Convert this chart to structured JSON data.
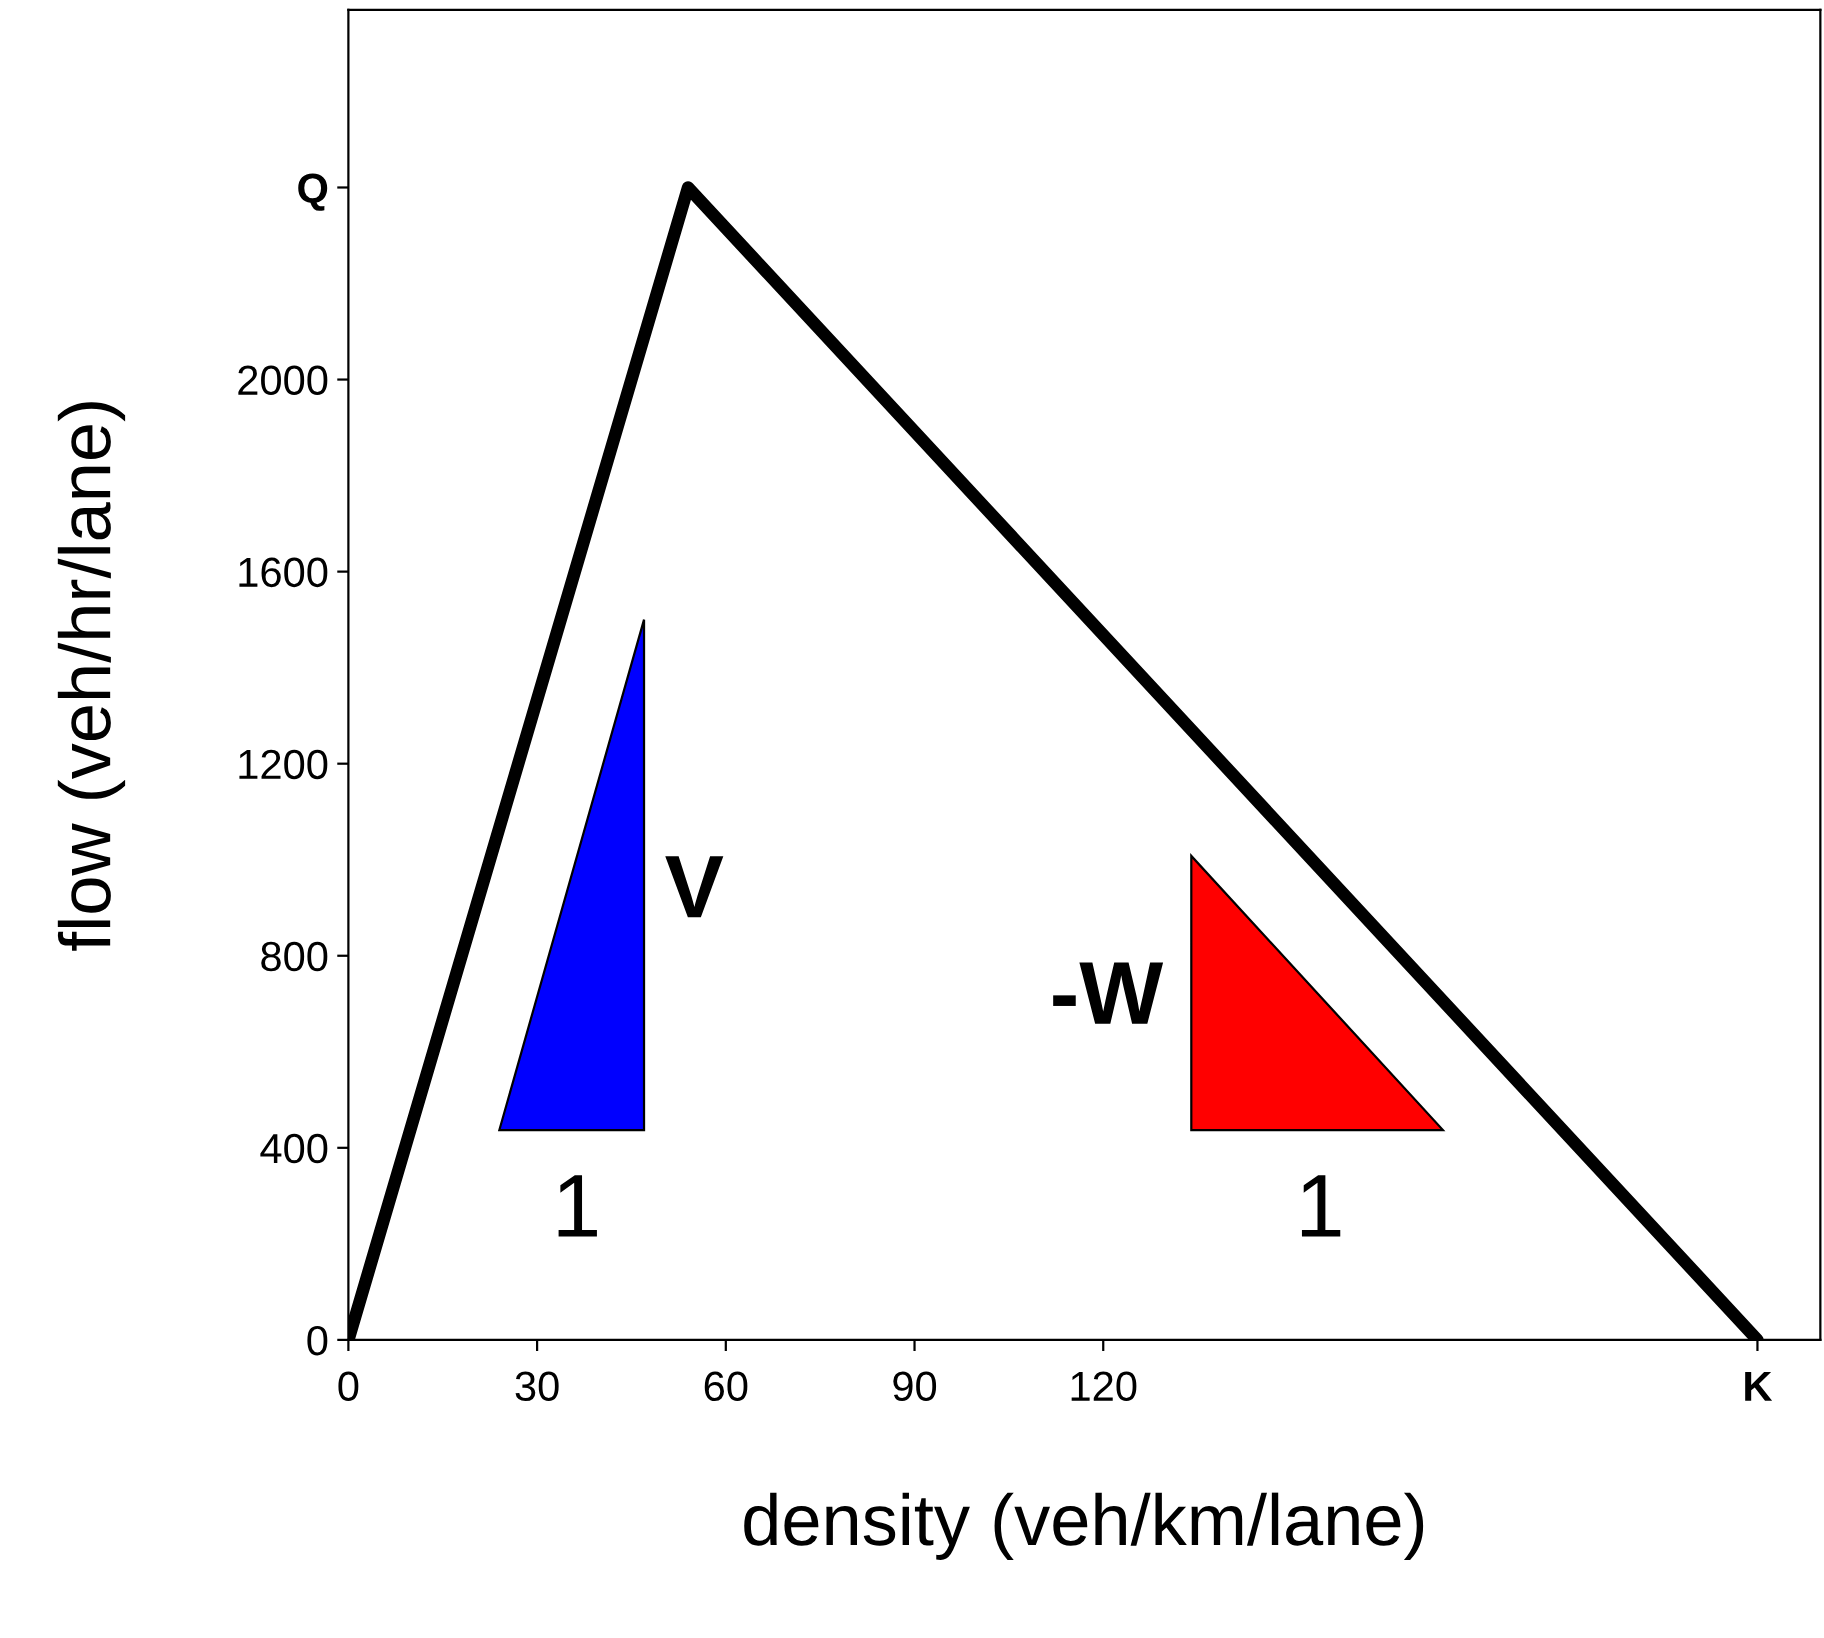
{
  "chart_data": {
    "type": "line",
    "xlabel": "density (veh/km/lane)",
    "ylabel": "flow (veh/hr/lane)",
    "xlim": [
      0,
      234
    ],
    "ylim": [
      0,
      2770
    ],
    "xticks": [
      0,
      30,
      60,
      90,
      120,
      {
        "value": 224,
        "label": "K"
      }
    ],
    "yticks": [
      0,
      400,
      800,
      1200,
      1600,
      2000,
      {
        "value": 2400,
        "label": "Q"
      }
    ],
    "grid": false,
    "marker": "none",
    "line_style": "solid",
    "series": [
      {
        "color": "#000000",
        "x": [
          0,
          54,
          224
        ],
        "values": [
          0,
          2400,
          0
        ]
      },
      {
        "type": "area",
        "color": "#0000ff",
        "x": [
          24,
          47,
          47
        ],
        "values": [
          437,
          437,
          1500
        ]
      },
      {
        "type": "area",
        "color": "#ff0000",
        "x": [
          134,
          174,
          134
        ],
        "values": [
          437,
          437,
          1008
        ]
      }
    ],
    "annotations": [
      "V",
      "1",
      "-W",
      "1"
    ]
  }
}
